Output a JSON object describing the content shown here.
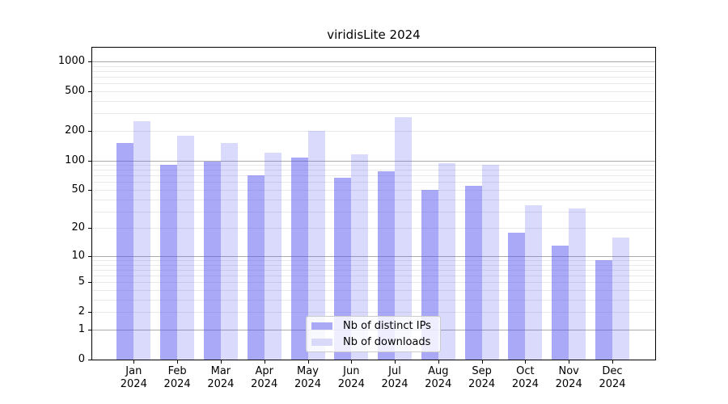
{
  "title": "viridisLite 2024",
  "chart_data": {
    "type": "bar",
    "title": "viridisLite 2024",
    "yscale": "log1p",
    "grid": true,
    "legend_position": "bottom-center",
    "categories": [
      "Jan 2024",
      "Feb 2024",
      "Mar 2024",
      "Apr 2024",
      "May 2024",
      "Jun 2024",
      "Jul 2024",
      "Aug 2024",
      "Sep 2024",
      "Oct 2024",
      "Nov 2024",
      "Dec 2024"
    ],
    "series": [
      {
        "name": "Nb of distinct IPs",
        "color": "rgba(80,80,240,0.49)",
        "values": [
          150,
          91,
          98,
          70,
          107,
          66,
          78,
          50,
          55,
          18,
          13,
          9
        ]
      },
      {
        "name": "Nb of downloads",
        "color": "rgba(80,80,240,0.21)",
        "values": [
          250,
          178,
          150,
          120,
          200,
          115,
          275,
          94,
          91,
          35,
          32,
          16
        ]
      }
    ],
    "y_tick_values": [
      1000,
      500,
      200,
      100,
      50,
      20,
      10,
      5,
      2,
      1,
      0
    ],
    "y_tick_labels": [
      "1000",
      "500",
      "200",
      "100",
      "50",
      "20",
      "10",
      "5",
      "2",
      "1",
      "0"
    ],
    "ylim": [
      0,
      1370
    ]
  },
  "legend": {
    "items": [
      {
        "label": "Nb of distinct IPs",
        "swatch_color": "#a9a9f6"
      },
      {
        "label": "Nb of downloads",
        "swatch_color": "#d9d9f9"
      }
    ]
  },
  "colors": {
    "bar_base": "#5050f0",
    "major_grid": "#ababab",
    "minor_grid": "#e9e9e9",
    "spine": "#000000"
  }
}
